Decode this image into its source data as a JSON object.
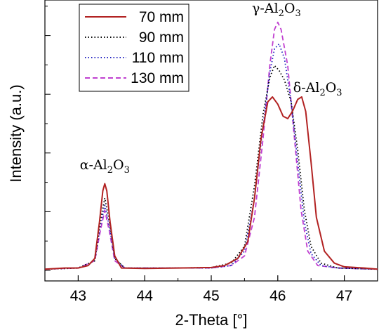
{
  "chart_data": {
    "type": "line",
    "xlabel": "2-Theta [°]",
    "ylabel": "Intensity (a.u.)",
    "xlim": [
      42.5,
      47.5
    ],
    "ylim": [
      0,
      1.05
    ],
    "x_ticks": [
      "43",
      "44",
      "45",
      "46",
      "47"
    ],
    "grid": false,
    "legend": "top-left",
    "series": [
      {
        "name": "70 mm",
        "color": "#b22222",
        "dash": "solid",
        "points": [
          [
            42.5,
            0.005
          ],
          [
            42.8,
            0.01
          ],
          [
            43.0,
            0.01
          ],
          [
            43.15,
            0.02
          ],
          [
            43.25,
            0.05
          ],
          [
            43.32,
            0.2
          ],
          [
            43.37,
            0.33
          ],
          [
            43.4,
            0.36
          ],
          [
            43.43,
            0.33
          ],
          [
            43.48,
            0.2
          ],
          [
            43.55,
            0.06
          ],
          [
            43.65,
            0.01
          ],
          [
            44.0,
            0.008
          ],
          [
            44.5,
            0.01
          ],
          [
            45.0,
            0.012
          ],
          [
            45.2,
            0.02
          ],
          [
            45.4,
            0.05
          ],
          [
            45.55,
            0.12
          ],
          [
            45.65,
            0.3
          ],
          [
            45.75,
            0.55
          ],
          [
            45.85,
            0.7
          ],
          [
            45.92,
            0.72
          ],
          [
            46.0,
            0.69
          ],
          [
            46.08,
            0.64
          ],
          [
            46.15,
            0.63
          ],
          [
            46.22,
            0.66
          ],
          [
            46.3,
            0.71
          ],
          [
            46.36,
            0.72
          ],
          [
            46.42,
            0.66
          ],
          [
            46.5,
            0.45
          ],
          [
            46.58,
            0.22
          ],
          [
            46.7,
            0.08
          ],
          [
            46.85,
            0.03
          ],
          [
            47.0,
            0.015
          ],
          [
            47.3,
            0.01
          ],
          [
            47.5,
            0.005
          ]
        ]
      },
      {
        "name": "90 mm",
        "color": "#000000",
        "dash": "dotted",
        "points": [
          [
            42.5,
            0.005
          ],
          [
            43.0,
            0.01
          ],
          [
            43.25,
            0.04
          ],
          [
            43.33,
            0.2
          ],
          [
            43.4,
            0.3
          ],
          [
            43.47,
            0.2
          ],
          [
            43.55,
            0.05
          ],
          [
            43.7,
            0.01
          ],
          [
            44.5,
            0.01
          ],
          [
            45.0,
            0.012
          ],
          [
            45.3,
            0.03
          ],
          [
            45.5,
            0.1
          ],
          [
            45.65,
            0.35
          ],
          [
            45.78,
            0.65
          ],
          [
            45.88,
            0.8
          ],
          [
            45.95,
            0.85
          ],
          [
            46.02,
            0.83
          ],
          [
            46.1,
            0.79
          ],
          [
            46.2,
            0.7
          ],
          [
            46.3,
            0.5
          ],
          [
            46.4,
            0.25
          ],
          [
            46.5,
            0.1
          ],
          [
            46.65,
            0.03
          ],
          [
            46.9,
            0.01
          ],
          [
            47.5,
            0.005
          ]
        ]
      },
      {
        "name": "110 mm",
        "color": "#1f1fbf",
        "dash": "dotted",
        "points": [
          [
            42.5,
            0.005
          ],
          [
            43.0,
            0.01
          ],
          [
            43.25,
            0.04
          ],
          [
            43.33,
            0.18
          ],
          [
            43.4,
            0.27
          ],
          [
            43.47,
            0.18
          ],
          [
            43.55,
            0.05
          ],
          [
            43.7,
            0.01
          ],
          [
            44.5,
            0.01
          ],
          [
            45.0,
            0.01
          ],
          [
            45.3,
            0.02
          ],
          [
            45.5,
            0.08
          ],
          [
            45.65,
            0.3
          ],
          [
            45.78,
            0.6
          ],
          [
            45.88,
            0.82
          ],
          [
            45.95,
            0.92
          ],
          [
            46.02,
            0.94
          ],
          [
            46.1,
            0.88
          ],
          [
            46.2,
            0.7
          ],
          [
            46.3,
            0.45
          ],
          [
            46.4,
            0.2
          ],
          [
            46.5,
            0.07
          ],
          [
            46.65,
            0.02
          ],
          [
            46.9,
            0.01
          ],
          [
            47.5,
            0.005
          ]
        ]
      },
      {
        "name": "130 mm",
        "color": "#c040d0",
        "dash": "dashed",
        "points": [
          [
            42.5,
            0.005
          ],
          [
            43.0,
            0.01
          ],
          [
            43.25,
            0.04
          ],
          [
            43.33,
            0.16
          ],
          [
            43.4,
            0.25
          ],
          [
            43.47,
            0.16
          ],
          [
            43.55,
            0.04
          ],
          [
            43.7,
            0.01
          ],
          [
            44.5,
            0.01
          ],
          [
            45.0,
            0.01
          ],
          [
            45.3,
            0.02
          ],
          [
            45.5,
            0.06
          ],
          [
            45.65,
            0.22
          ],
          [
            45.78,
            0.55
          ],
          [
            45.88,
            0.85
          ],
          [
            45.95,
            1.0
          ],
          [
            46.0,
            1.03
          ],
          [
            46.05,
            1.0
          ],
          [
            46.15,
            0.85
          ],
          [
            46.25,
            0.55
          ],
          [
            46.35,
            0.25
          ],
          [
            46.45,
            0.08
          ],
          [
            46.6,
            0.02
          ],
          [
            46.9,
            0.01
          ],
          [
            47.5,
            0.005
          ]
        ]
      }
    ],
    "annotations": [
      {
        "greek": "α",
        "sub": "2",
        "sub2": "3",
        "x": 43.4,
        "y": 0.42
      },
      {
        "greek": "γ",
        "sub": "2",
        "sub2": "3",
        "x": 45.98,
        "y": 1.07
      },
      {
        "greek": "δ",
        "sub": "2",
        "sub2": "3",
        "x": 46.6,
        "y": 0.74
      }
    ],
    "annotation_parts": {
      "prefix": "-Al",
      "mid": "O"
    }
  }
}
